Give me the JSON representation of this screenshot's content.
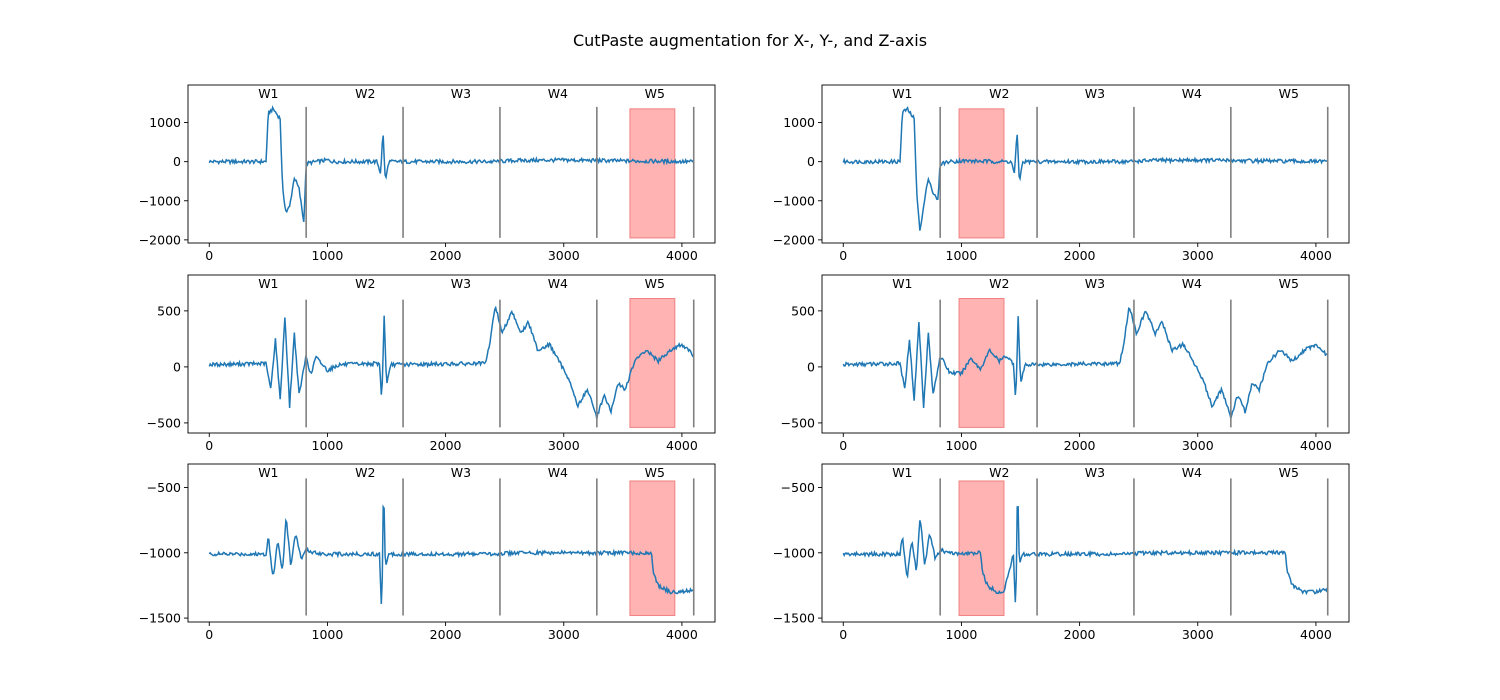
{
  "figure": {
    "title": "CutPaste augmentation for X-, Y-, and Z-axis",
    "line_color": "#1f77b4",
    "boundary_color": "#808080",
    "highlight_color": "#ff9999"
  },
  "chart_data": [
    {
      "type": "line",
      "row": 0,
      "col": 0,
      "axis": "X",
      "xlim": [
        -180,
        4280
      ],
      "ylim": [
        -2080,
        1960
      ],
      "xticks": [
        0,
        1000,
        2000,
        3000,
        4000
      ],
      "yticks": [
        -2000,
        -1000,
        0,
        1000
      ],
      "window_labels": [
        "W1",
        "W2",
        "W3",
        "W4",
        "W5"
      ],
      "window_label_x": [
        500,
        1320,
        2130,
        2950,
        3770
      ],
      "window_boundaries": [
        820,
        1640,
        2460,
        3280,
        4100
      ],
      "boundary_range": [
        -1950,
        1400
      ],
      "highlight": {
        "x0": 3560,
        "x1": 3940,
        "y0": -1950,
        "y1": 1350
      },
      "series": [
        {
          "values": [
            [
              0,
              0
            ],
            [
              480,
              0
            ],
            [
              500,
              1250
            ],
            [
              540,
              1350
            ],
            [
              600,
              1100
            ],
            [
              620,
              -700
            ],
            [
              650,
              -1300
            ],
            [
              680,
              -1150
            ],
            [
              720,
              -400
            ],
            [
              760,
              -700
            ],
            [
              800,
              -1550
            ],
            [
              820,
              -50
            ],
            [
              900,
              0
            ],
            [
              1000,
              40
            ],
            [
              1050,
              0
            ],
            [
              1420,
              0
            ],
            [
              1450,
              -300
            ],
            [
              1470,
              780
            ],
            [
              1490,
              -500
            ],
            [
              1520,
              0
            ],
            [
              2400,
              0
            ],
            [
              2600,
              30
            ],
            [
              3000,
              40
            ],
            [
              3500,
              20
            ],
            [
              4100,
              0
            ]
          ]
        }
      ]
    },
    {
      "type": "line",
      "row": 0,
      "col": 1,
      "axis": "X",
      "xlim": [
        -180,
        4280
      ],
      "ylim": [
        -2080,
        1960
      ],
      "xticks": [
        0,
        1000,
        2000,
        3000,
        4000
      ],
      "yticks": [
        -2000,
        -1000,
        0,
        1000
      ],
      "window_labels": [
        "W1",
        "W2",
        "W3",
        "W4",
        "W5"
      ],
      "window_label_x": [
        500,
        1320,
        2130,
        2950,
        3770
      ],
      "window_boundaries": [
        820,
        1640,
        2460,
        3280,
        4100
      ],
      "boundary_range": [
        -1950,
        1400
      ],
      "highlight": {
        "x0": 980,
        "x1": 1360,
        "y0": -1950,
        "y1": 1350
      },
      "series": [
        {
          "values": [
            [
              0,
              0
            ],
            [
              480,
              0
            ],
            [
              500,
              1250
            ],
            [
              540,
              1350
            ],
            [
              600,
              1100
            ],
            [
              620,
              -700
            ],
            [
              650,
              -1800
            ],
            [
              680,
              -1150
            ],
            [
              720,
              -400
            ],
            [
              760,
              -800
            ],
            [
              800,
              -1000
            ],
            [
              820,
              -50
            ],
            [
              900,
              0
            ],
            [
              1000,
              20
            ],
            [
              1360,
              0
            ],
            [
              1420,
              0
            ],
            [
              1450,
              -300
            ],
            [
              1470,
              780
            ],
            [
              1490,
              -500
            ],
            [
              1520,
              0
            ],
            [
              2400,
              0
            ],
            [
              2600,
              30
            ],
            [
              3000,
              40
            ],
            [
              3500,
              20
            ],
            [
              4100,
              0
            ]
          ]
        }
      ]
    },
    {
      "type": "line",
      "row": 1,
      "col": 0,
      "axis": "Y",
      "xlim": [
        -180,
        4280
      ],
      "ylim": [
        -590,
        820
      ],
      "xticks": [
        0,
        1000,
        2000,
        3000,
        4000
      ],
      "yticks": [
        -500,
        0,
        500
      ],
      "window_labels": [
        "W1",
        "W2",
        "W3",
        "W4",
        "W5"
      ],
      "window_label_x": [
        500,
        1320,
        2130,
        2950,
        3770
      ],
      "window_boundaries": [
        820,
        1640,
        2460,
        3280,
        4100
      ],
      "boundary_range": [
        -540,
        600
      ],
      "highlight": {
        "x0": 3560,
        "x1": 3940,
        "y0": -540,
        "y1": 610
      },
      "series": [
        {
          "values": [
            [
              0,
              20
            ],
            [
              480,
              30
            ],
            [
              520,
              -200
            ],
            [
              560,
              250
            ],
            [
              600,
              -300
            ],
            [
              640,
              450
            ],
            [
              680,
              -350
            ],
            [
              720,
              300
            ],
            [
              760,
              -250
            ],
            [
              820,
              100
            ],
            [
              860,
              -80
            ],
            [
              900,
              90
            ],
            [
              1000,
              -30
            ],
            [
              1100,
              20
            ],
            [
              1440,
              30
            ],
            [
              1460,
              -300
            ],
            [
              1480,
              450
            ],
            [
              1500,
              -150
            ],
            [
              1540,
              20
            ],
            [
              2340,
              30
            ],
            [
              2380,
              250
            ],
            [
              2420,
              550
            ],
            [
              2480,
              300
            ],
            [
              2560,
              500
            ],
            [
              2640,
              300
            ],
            [
              2700,
              400
            ],
            [
              2780,
              150
            ],
            [
              2880,
              200
            ],
            [
              2960,
              50
            ],
            [
              3040,
              -100
            ],
            [
              3120,
              -350
            ],
            [
              3200,
              -200
            ],
            [
              3280,
              -450
            ],
            [
              3340,
              -250
            ],
            [
              3400,
              -400
            ],
            [
              3460,
              -150
            ],
            [
              3520,
              -200
            ],
            [
              3600,
              50
            ],
            [
              3700,
              150
            ],
            [
              3800,
              50
            ],
            [
              3900,
              150
            ],
            [
              4000,
              200
            ],
            [
              4100,
              100
            ]
          ]
        }
      ]
    },
    {
      "type": "line",
      "row": 1,
      "col": 1,
      "axis": "Y",
      "xlim": [
        -180,
        4280
      ],
      "ylim": [
        -590,
        820
      ],
      "xticks": [
        0,
        1000,
        2000,
        3000,
        4000
      ],
      "yticks": [
        -500,
        0,
        500
      ],
      "window_labels": [
        "W1",
        "W2",
        "W3",
        "W4",
        "W5"
      ],
      "window_label_x": [
        500,
        1320,
        2130,
        2950,
        3770
      ],
      "window_boundaries": [
        820,
        1640,
        2460,
        3280,
        4100
      ],
      "boundary_range": [
        -540,
        600
      ],
      "highlight": {
        "x0": 980,
        "x1": 1360,
        "y0": -540,
        "y1": 610
      },
      "series": [
        {
          "values": [
            [
              0,
              20
            ],
            [
              480,
              30
            ],
            [
              520,
              -200
            ],
            [
              560,
              250
            ],
            [
              600,
              -300
            ],
            [
              640,
              400
            ],
            [
              680,
              -350
            ],
            [
              720,
              300
            ],
            [
              760,
              -250
            ],
            [
              820,
              100
            ],
            [
              900,
              -50
            ],
            [
              1000,
              -60
            ],
            [
              1080,
              80
            ],
            [
              1160,
              -20
            ],
            [
              1240,
              150
            ],
            [
              1320,
              50
            ],
            [
              1380,
              100
            ],
            [
              1440,
              30
            ],
            [
              1460,
              -300
            ],
            [
              1480,
              450
            ],
            [
              1500,
              -150
            ],
            [
              1540,
              20
            ],
            [
              2340,
              30
            ],
            [
              2380,
              250
            ],
            [
              2420,
              550
            ],
            [
              2480,
              300
            ],
            [
              2560,
              500
            ],
            [
              2640,
              300
            ],
            [
              2700,
              400
            ],
            [
              2780,
              150
            ],
            [
              2880,
              200
            ],
            [
              2960,
              50
            ],
            [
              3040,
              -100
            ],
            [
              3120,
              -350
            ],
            [
              3200,
              -200
            ],
            [
              3280,
              -450
            ],
            [
              3340,
              -250
            ],
            [
              3400,
              -400
            ],
            [
              3460,
              -150
            ],
            [
              3520,
              -200
            ],
            [
              3600,
              50
            ],
            [
              3700,
              150
            ],
            [
              3800,
              50
            ],
            [
              3900,
              150
            ],
            [
              4000,
              200
            ],
            [
              4100,
              100
            ]
          ]
        }
      ]
    },
    {
      "type": "line",
      "row": 2,
      "col": 0,
      "axis": "Z",
      "xlim": [
        -180,
        4280
      ],
      "ylim": [
        -1530,
        -320
      ],
      "xticks": [
        0,
        1000,
        2000,
        3000,
        4000
      ],
      "yticks": [
        -1500,
        -1000,
        -500
      ],
      "window_labels": [
        "W1",
        "W2",
        "W3",
        "W4",
        "W5"
      ],
      "window_label_x": [
        500,
        1320,
        2130,
        2950,
        3770
      ],
      "window_boundaries": [
        820,
        1640,
        2460,
        3280,
        4100
      ],
      "boundary_range": [
        -1480,
        -430
      ],
      "highlight": {
        "x0": 3560,
        "x1": 3940,
        "y0": -1480,
        "y1": -450
      },
      "series": [
        {
          "values": [
            [
              0,
              -1010
            ],
            [
              480,
              -1010
            ],
            [
              500,
              -870
            ],
            [
              540,
              -1200
            ],
            [
              580,
              -900
            ],
            [
              620,
              -1150
            ],
            [
              650,
              -720
            ],
            [
              690,
              -1100
            ],
            [
              730,
              -850
            ],
            [
              780,
              -1050
            ],
            [
              820,
              -980
            ],
            [
              900,
              -1000
            ],
            [
              1000,
              -1010
            ],
            [
              1440,
              -1010
            ],
            [
              1460,
              -1480
            ],
            [
              1475,
              -430
            ],
            [
              1490,
              -1100
            ],
            [
              1520,
              -1010
            ],
            [
              2400,
              -1010
            ],
            [
              2600,
              -1000
            ],
            [
              3000,
              -1000
            ],
            [
              3500,
              -1000
            ],
            [
              3740,
              -1000
            ],
            [
              3760,
              -1150
            ],
            [
              3800,
              -1250
            ],
            [
              3900,
              -1300
            ],
            [
              4000,
              -1300
            ],
            [
              4100,
              -1280
            ]
          ]
        }
      ]
    },
    {
      "type": "line",
      "row": 2,
      "col": 1,
      "axis": "Z",
      "xlim": [
        -180,
        4280
      ],
      "ylim": [
        -1530,
        -320
      ],
      "xticks": [
        0,
        1000,
        2000,
        3000,
        4000
      ],
      "yticks": [
        -1500,
        -1000,
        -500
      ],
      "window_labels": [
        "W1",
        "W2",
        "W3",
        "W4",
        "W5"
      ],
      "window_label_x": [
        500,
        1320,
        2130,
        2950,
        3770
      ],
      "window_boundaries": [
        820,
        1640,
        2460,
        3280,
        4100
      ],
      "boundary_range": [
        -1480,
        -430
      ],
      "highlight": {
        "x0": 980,
        "x1": 1360,
        "y0": -1480,
        "y1": -450
      },
      "series": [
        {
          "values": [
            [
              0,
              -1010
            ],
            [
              480,
              -1010
            ],
            [
              500,
              -870
            ],
            [
              540,
              -1200
            ],
            [
              580,
              -900
            ],
            [
              620,
              -1150
            ],
            [
              650,
              -720
            ],
            [
              690,
              -1100
            ],
            [
              730,
              -850
            ],
            [
              780,
              -1050
            ],
            [
              820,
              -980
            ],
            [
              900,
              -1000
            ],
            [
              1000,
              -1010
            ],
            [
              1160,
              -1000
            ],
            [
              1180,
              -1150
            ],
            [
              1220,
              -1250
            ],
            [
              1300,
              -1300
            ],
            [
              1360,
              -1300
            ],
            [
              1440,
              -1010
            ],
            [
              1460,
              -1480
            ],
            [
              1475,
              -430
            ],
            [
              1490,
              -1100
            ],
            [
              1520,
              -1010
            ],
            [
              2400,
              -1010
            ],
            [
              2600,
              -1000
            ],
            [
              3000,
              -1000
            ],
            [
              3500,
              -1000
            ],
            [
              3740,
              -1000
            ],
            [
              3760,
              -1150
            ],
            [
              3800,
              -1250
            ],
            [
              3900,
              -1300
            ],
            [
              4000,
              -1300
            ],
            [
              4100,
              -1280
            ]
          ]
        }
      ]
    }
  ]
}
